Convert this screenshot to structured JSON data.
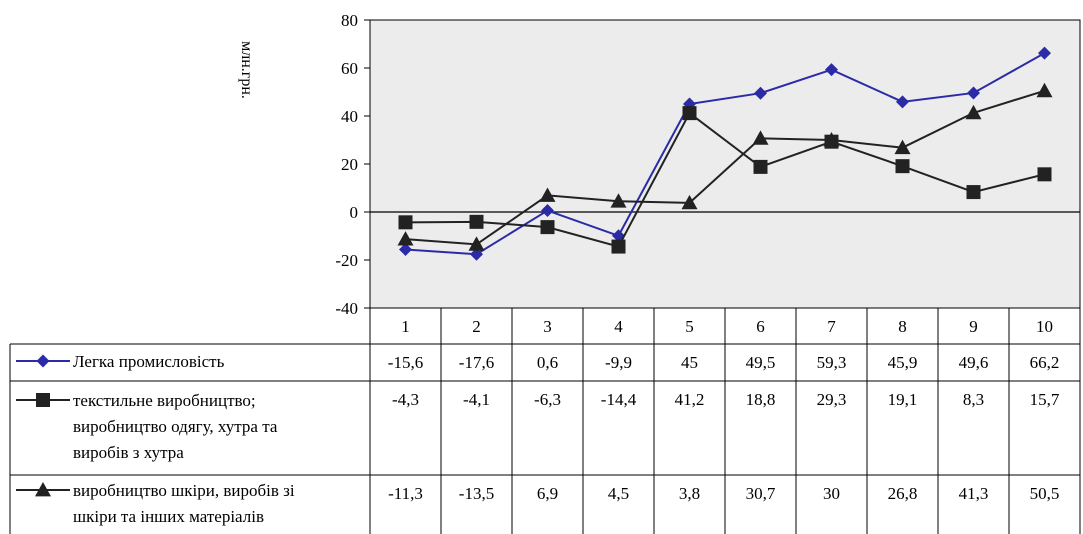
{
  "chart_data": {
    "type": "line",
    "ylabel": "млн.грн.",
    "ylim": [
      -40,
      80
    ],
    "yticks": [
      "80",
      "60",
      "40",
      "20",
      "0",
      "-20",
      "-40"
    ],
    "categories": [
      "1",
      "2",
      "3",
      "4",
      "5",
      "6",
      "7",
      "8",
      "9",
      "10"
    ],
    "legend_placement": "bottom (data table)",
    "grid": false,
    "series": [
      {
        "name": "Легка промисловість",
        "name_lines": [
          "Легка промисловість"
        ],
        "marker": "diamond",
        "color": "#2b2ba8",
        "values": [
          -15.6,
          -17.6,
          0.6,
          -9.9,
          45,
          49.5,
          59.3,
          45.9,
          49.6,
          66.2
        ],
        "labels": [
          "-15,6",
          "-17,6",
          "0,6",
          "-9,9",
          "45",
          "49,5",
          "59,3",
          "45,9",
          "49,6",
          "66,2"
        ]
      },
      {
        "name": "текстильне виробництво; виробництво одягу, хутра та виробів з хутра",
        "name_lines": [
          "текстильне виробництво;",
          "виробництво одягу, хутра та",
          "виробів з хутра"
        ],
        "marker": "square",
        "color": "#222222",
        "values": [
          -4.3,
          -4.1,
          -6.3,
          -14.4,
          41.2,
          18.8,
          29.3,
          19.1,
          8.3,
          15.7
        ],
        "labels": [
          "-4,3",
          "-4,1",
          "-6,3",
          "-14,4",
          "41,2",
          "18,8",
          "29,3",
          "19,1",
          "8,3",
          "15,7"
        ]
      },
      {
        "name": "виробництво шкіри, виробів зі шкіри та інших матеріалів",
        "name_lines": [
          "виробництво шкіри, виробів зі",
          "шкіри та інших матеріалів"
        ],
        "marker": "triangle",
        "color": "#222222",
        "values": [
          -11.3,
          -13.5,
          6.9,
          4.5,
          3.8,
          30.7,
          30,
          26.8,
          41.3,
          50.5
        ],
        "labels": [
          "-11,3",
          "-13,5",
          "6,9",
          "4,5",
          "3,8",
          "30,7",
          "30",
          "26,8",
          "41,3",
          "50,5"
        ]
      }
    ]
  },
  "colors": {
    "plot_background": "#ececec",
    "axis": "#000000"
  }
}
